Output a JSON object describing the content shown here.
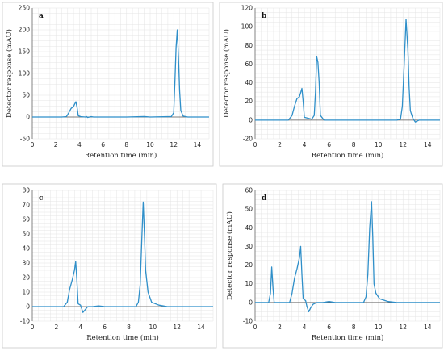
{
  "colors": {
    "trace": "#2f8fc9"
  },
  "chart_data": [
    {
      "type": "line",
      "panel": "a",
      "xlabel": "Retention time (min)",
      "ylabel": "Detector response (mAU)",
      "xlim": [
        0,
        15
      ],
      "ylim": [
        -50,
        250
      ],
      "xticks": [
        0,
        2,
        4,
        6,
        8,
        10,
        12,
        14
      ],
      "yticks": [
        -50,
        0,
        50,
        100,
        150,
        200,
        250
      ],
      "grid": true,
      "series": [
        {
          "points": [
            [
              0,
              0
            ],
            [
              2.5,
              0
            ],
            [
              2.9,
              1
            ],
            [
              3.1,
              10
            ],
            [
              3.3,
              20
            ],
            [
              3.5,
              24
            ],
            [
              3.6,
              30
            ],
            [
              3.7,
              35
            ],
            [
              3.8,
              22
            ],
            [
              3.9,
              3
            ],
            [
              4.1,
              1
            ],
            [
              4.5,
              0
            ],
            [
              4.6,
              1
            ],
            [
              4.7,
              -1
            ],
            [
              5,
              1
            ],
            [
              5.2,
              0
            ],
            [
              8,
              0
            ],
            [
              9.5,
              1
            ],
            [
              10,
              0
            ],
            [
              11.8,
              1
            ],
            [
              12.0,
              10
            ],
            [
              12.1,
              80
            ],
            [
              12.2,
              160
            ],
            [
              12.3,
              200
            ],
            [
              12.4,
              140
            ],
            [
              12.5,
              60
            ],
            [
              12.6,
              15
            ],
            [
              12.8,
              2
            ],
            [
              13.2,
              0
            ],
            [
              15,
              0
            ]
          ]
        }
      ]
    },
    {
      "type": "line",
      "panel": "b",
      "xlabel": "Retention time (min)",
      "ylabel": "Detector response (mAU)",
      "xlim": [
        0,
        15
      ],
      "ylim": [
        -20,
        120
      ],
      "xticks": [
        0,
        2,
        4,
        6,
        8,
        10,
        12,
        14
      ],
      "yticks": [
        -20,
        0,
        20,
        40,
        60,
        80,
        100,
        120
      ],
      "grid": true,
      "series": [
        {
          "points": [
            [
              0,
              0
            ],
            [
              2.7,
              0
            ],
            [
              3.0,
              5
            ],
            [
              3.2,
              15
            ],
            [
              3.4,
              23
            ],
            [
              3.6,
              25
            ],
            [
              3.8,
              34
            ],
            [
              3.9,
              20
            ],
            [
              4.0,
              3
            ],
            [
              4.3,
              2
            ],
            [
              4.6,
              1
            ],
            [
              4.8,
              5
            ],
            [
              4.9,
              30
            ],
            [
              5.0,
              68
            ],
            [
              5.1,
              62
            ],
            [
              5.2,
              40
            ],
            [
              5.3,
              5
            ],
            [
              5.6,
              0
            ],
            [
              11.5,
              0
            ],
            [
              11.8,
              1
            ],
            [
              11.95,
              15
            ],
            [
              12.1,
              60
            ],
            [
              12.25,
              108
            ],
            [
              12.4,
              75
            ],
            [
              12.5,
              35
            ],
            [
              12.6,
              10
            ],
            [
              12.8,
              2
            ],
            [
              13.0,
              -2
            ],
            [
              13.3,
              0
            ],
            [
              15,
              0
            ]
          ]
        }
      ]
    },
    {
      "type": "line",
      "panel": "c",
      "xlabel": "Retention time (min)",
      "ylabel": "",
      "xlim": [
        0,
        15
      ],
      "ylim": [
        -10,
        80
      ],
      "xticks": [
        0,
        2,
        4,
        6,
        8,
        10,
        12,
        14
      ],
      "yticks": [
        -10,
        0,
        10,
        20,
        30,
        40,
        50,
        60,
        70,
        80
      ],
      "grid": true,
      "series": [
        {
          "points": [
            [
              0,
              0
            ],
            [
              2.6,
              0
            ],
            [
              2.9,
              3
            ],
            [
              3.1,
              12
            ],
            [
              3.3,
              18
            ],
            [
              3.5,
              25
            ],
            [
              3.6,
              31
            ],
            [
              3.7,
              18
            ],
            [
              3.8,
              2
            ],
            [
              4.0,
              1
            ],
            [
              4.2,
              -4
            ],
            [
              4.4,
              -2
            ],
            [
              4.6,
              0
            ],
            [
              5.0,
              0
            ],
            [
              5.5,
              0.5
            ],
            [
              6,
              0
            ],
            [
              8.6,
              0
            ],
            [
              8.8,
              3
            ],
            [
              8.95,
              15
            ],
            [
              9.1,
              50
            ],
            [
              9.2,
              72
            ],
            [
              9.3,
              50
            ],
            [
              9.4,
              25
            ],
            [
              9.6,
              10
            ],
            [
              9.9,
              3
            ],
            [
              10.5,
              1
            ],
            [
              11.2,
              0
            ],
            [
              15,
              0
            ]
          ]
        }
      ]
    },
    {
      "type": "line",
      "panel": "d",
      "xlabel": "Retention time (min)",
      "ylabel": "Detector response (mAU)",
      "xlim": [
        0,
        15
      ],
      "ylim": [
        -10,
        60
      ],
      "xticks": [
        0,
        2,
        4,
        6,
        8,
        10,
        12,
        14
      ],
      "yticks": [
        -10,
        0,
        10,
        20,
        30,
        40,
        50,
        60
      ],
      "grid": true,
      "series": [
        {
          "points": [
            [
              0,
              0
            ],
            [
              1.1,
              0
            ],
            [
              1.25,
              5
            ],
            [
              1.35,
              19
            ],
            [
              1.45,
              8
            ],
            [
              1.55,
              0
            ],
            [
              2.8,
              0
            ],
            [
              3.0,
              5
            ],
            [
              3.2,
              13
            ],
            [
              3.4,
              18
            ],
            [
              3.6,
              24
            ],
            [
              3.7,
              30
            ],
            [
              3.8,
              15
            ],
            [
              3.9,
              2
            ],
            [
              4.1,
              1
            ],
            [
              4.2,
              -2
            ],
            [
              4.35,
              -5
            ],
            [
              4.5,
              -3
            ],
            [
              4.7,
              -1
            ],
            [
              5.0,
              0
            ],
            [
              5.5,
              0
            ],
            [
              6.0,
              0.5
            ],
            [
              6.5,
              0
            ],
            [
              8.8,
              0
            ],
            [
              9.0,
              3
            ],
            [
              9.15,
              15
            ],
            [
              9.3,
              40
            ],
            [
              9.45,
              54
            ],
            [
              9.55,
              35
            ],
            [
              9.65,
              10
            ],
            [
              9.8,
              5
            ],
            [
              10.1,
              2
            ],
            [
              10.8,
              0.5
            ],
            [
              11.5,
              0
            ],
            [
              15,
              0
            ]
          ]
        }
      ]
    }
  ]
}
